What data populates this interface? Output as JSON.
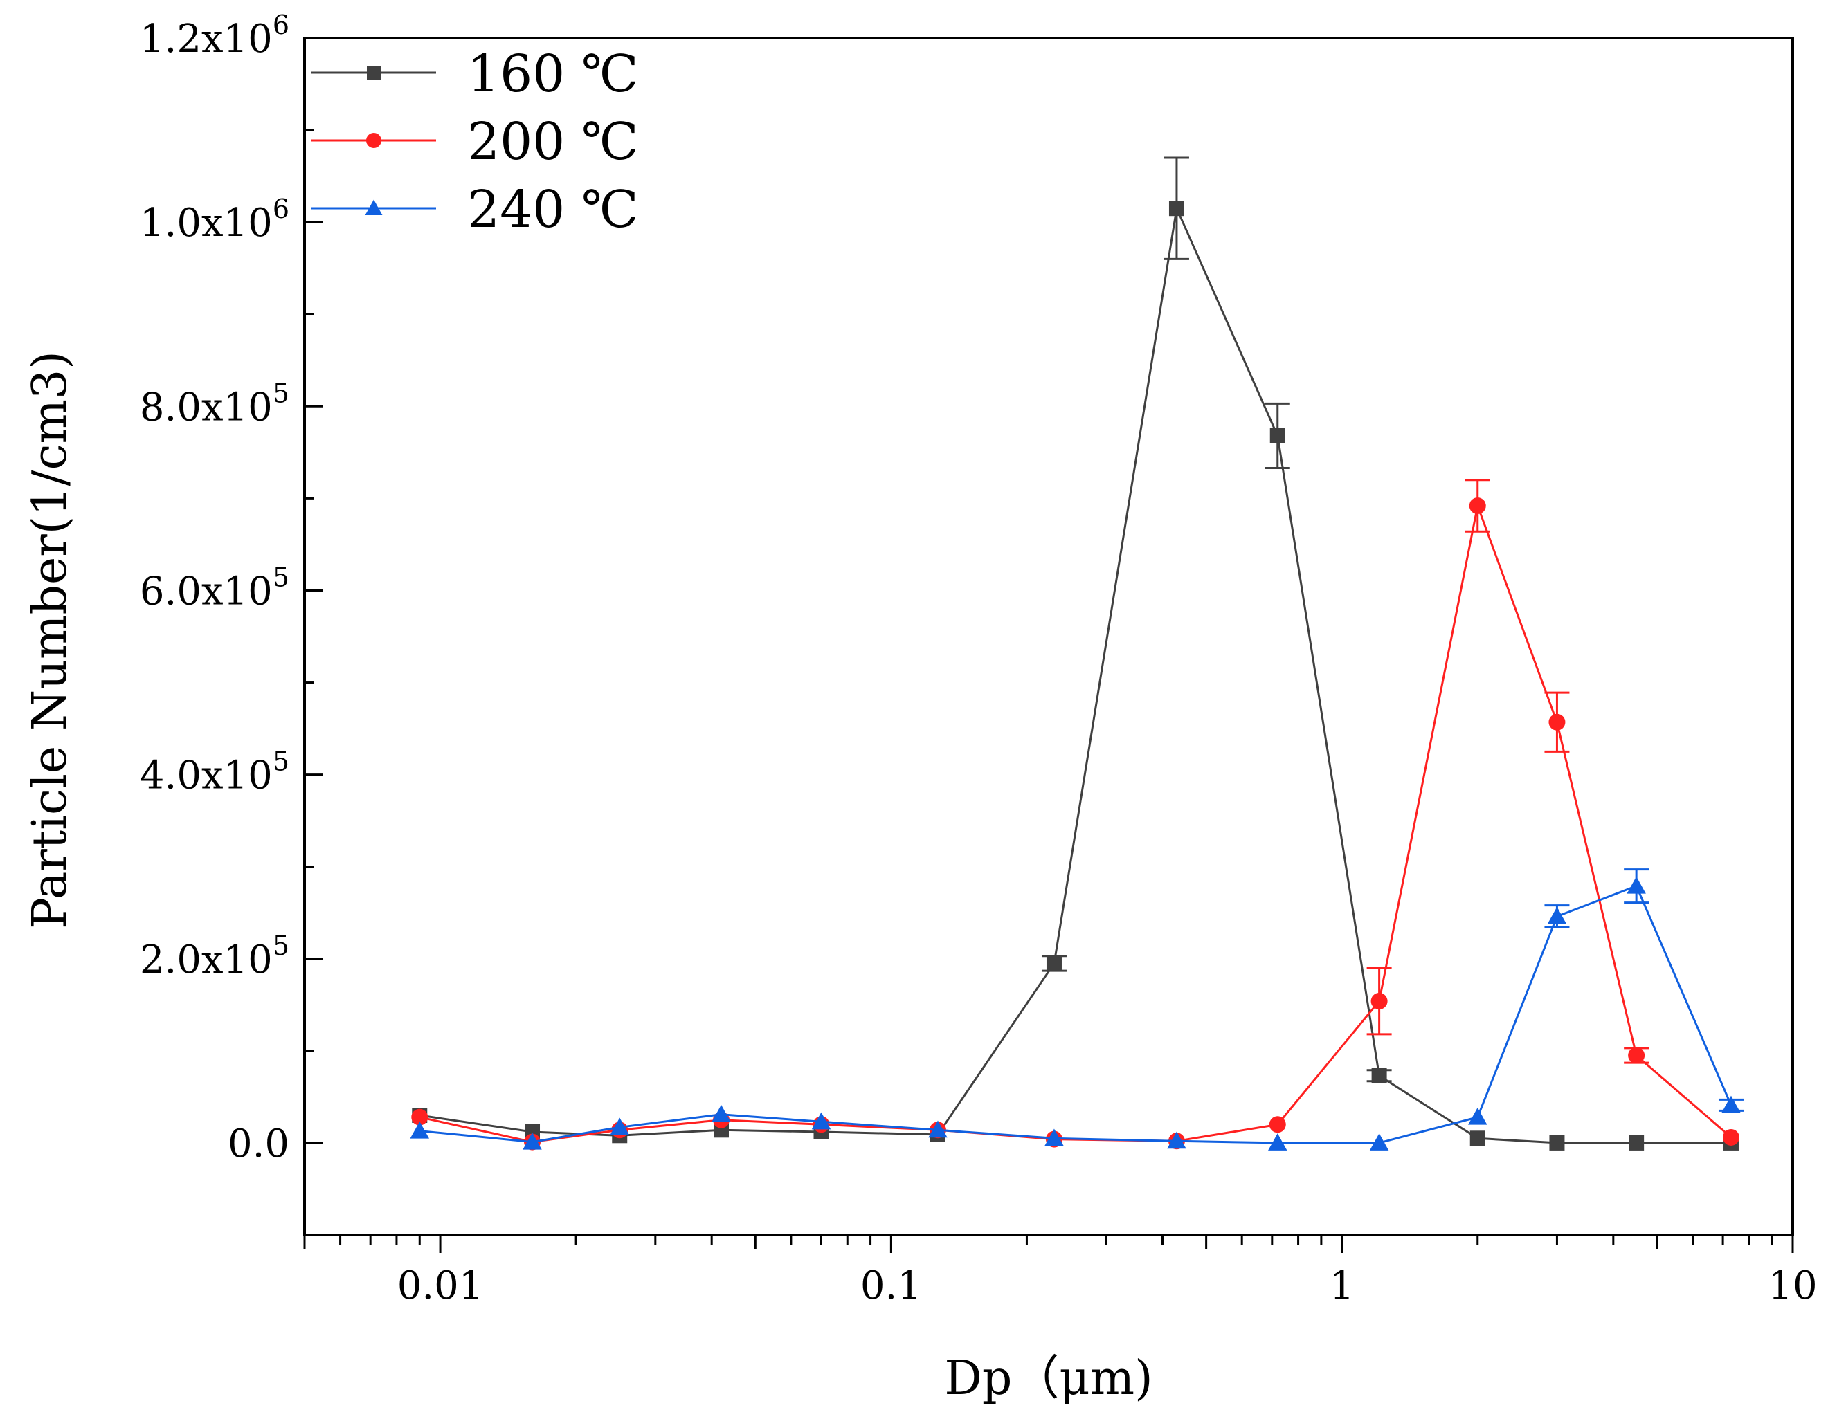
{
  "chart_data": {
    "type": "line",
    "title": "",
    "xlabel": "Dp（μm)",
    "ylabel": "Particle Number(1/cm3)",
    "x_scale": "log",
    "xlim": [
      0.005,
      10
    ],
    "ylim": [
      -100000,
      1200000
    ],
    "x_tick_labels": [
      {
        "value": 0.01,
        "label": "0.01"
      },
      {
        "value": 0.1,
        "label": "0.1"
      },
      {
        "value": 1,
        "label": "1"
      },
      {
        "value": 10,
        "label": "10"
      }
    ],
    "y_tick_labels": [
      {
        "value": 0,
        "mant": "0.0",
        "exp": ""
      },
      {
        "value": 200000,
        "mant": "2.0x10",
        "exp": "5"
      },
      {
        "value": 400000,
        "mant": "4.0x10",
        "exp": "5"
      },
      {
        "value": 600000,
        "mant": "6.0x10",
        "exp": "5"
      },
      {
        "value": 800000,
        "mant": "8.0x10",
        "exp": "5"
      },
      {
        "value": 1000000,
        "mant": "1.0x10",
        "exp": "6"
      },
      {
        "value": 1200000,
        "mant": "1.2x10",
        "exp": "6"
      }
    ],
    "legend_position": "top-left",
    "series": [
      {
        "name": "160 ℃",
        "color": "#404040",
        "marker": "square",
        "x": [
          0.009,
          0.016,
          0.025,
          0.042,
          0.07,
          0.127,
          0.23,
          0.43,
          0.72,
          1.21,
          2.0,
          3.0,
          4.5,
          7.3
        ],
        "y": [
          30000,
          12000,
          8000,
          14000,
          12000,
          9000,
          195000,
          1015000,
          768000,
          73000,
          5000,
          0,
          0,
          0
        ],
        "err": [
          0,
          0,
          0,
          0,
          0,
          0,
          8000,
          55000,
          35000,
          6000,
          0,
          0,
          0,
          0
        ]
      },
      {
        "name": "200 ℃",
        "color": "#ff2020",
        "marker": "circle",
        "x": [
          0.009,
          0.016,
          0.025,
          0.042,
          0.07,
          0.127,
          0.23,
          0.43,
          0.72,
          1.21,
          2.0,
          3.0,
          4.5,
          7.3
        ],
        "y": [
          28000,
          1000,
          14000,
          25000,
          20000,
          14000,
          4000,
          2000,
          20000,
          154000,
          692000,
          457000,
          95000,
          6000
        ],
        "err": [
          0,
          0,
          0,
          0,
          0,
          0,
          0,
          0,
          0,
          36000,
          28000,
          32000,
          8000,
          0
        ]
      },
      {
        "name": "240 ℃",
        "color": "#1060e0",
        "marker": "triangle",
        "x": [
          0.009,
          0.016,
          0.025,
          0.042,
          0.07,
          0.127,
          0.23,
          0.43,
          0.72,
          1.21,
          2.0,
          3.0,
          4.5,
          7.3
        ],
        "y": [
          13000,
          1000,
          17000,
          31000,
          23000,
          14000,
          5000,
          2000,
          0,
          0,
          28000,
          246000,
          279000,
          41000
        ],
        "err": [
          0,
          0,
          0,
          0,
          0,
          0,
          0,
          0,
          0,
          0,
          0,
          12000,
          18000,
          6000
        ]
      }
    ]
  }
}
